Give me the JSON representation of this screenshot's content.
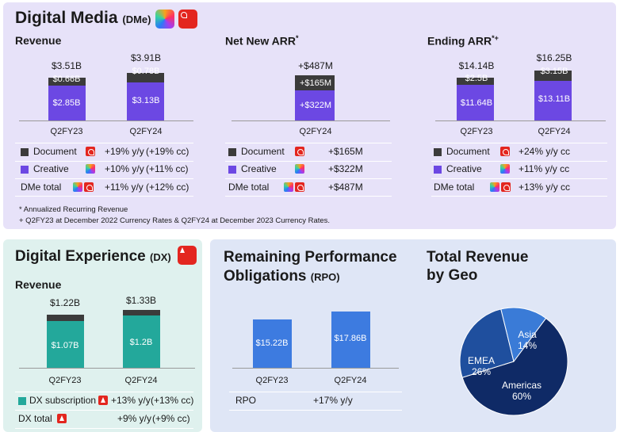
{
  "dme": {
    "title": "Digital Media",
    "title_paren": "(DMe)",
    "revenue": {
      "heading": "Revenue",
      "bars": [
        {
          "total": "$3.51B",
          "top_label": "$0.66B",
          "bottom_label": "$2.85B",
          "tick": "Q2FY23"
        },
        {
          "total": "$3.91B",
          "top_label": "$0.78B",
          "bottom_label": "$3.13B",
          "tick": "Q2FY24"
        }
      ],
      "rows": [
        {
          "label": "Document",
          "growth": "+19% y/y",
          "cc": "(+19% cc)"
        },
        {
          "label": "Creative",
          "growth": "+10% y/y",
          "cc": "(+11% cc)"
        },
        {
          "label": "DMe total",
          "growth": "+11% y/y",
          "cc": "(+12% cc)"
        }
      ]
    },
    "netnew": {
      "heading": "Net New ARR",
      "heading_sup": "*",
      "bar": {
        "total": "+$487M",
        "top_label": "+$165M",
        "bottom_label": "+$322M",
        "tick": "Q2FY24"
      },
      "rows": [
        {
          "label": "Document",
          "value": "+$165M"
        },
        {
          "label": "Creative",
          "value": "+$322M"
        },
        {
          "label": "DMe total",
          "value": "+$487M"
        }
      ]
    },
    "ending": {
      "heading": "Ending ARR",
      "heading_sup": "*+",
      "bars": [
        {
          "total": "$14.14B",
          "top_label": "$2.5B",
          "bottom_label": "$11.64B",
          "tick": "Q2FY23"
        },
        {
          "total": "$16.25B",
          "top_label": "$3.15B",
          "bottom_label": "$13.11B",
          "tick": "Q2FY24"
        }
      ],
      "rows": [
        {
          "label": "Document",
          "value": "+24% y/y cc"
        },
        {
          "label": "Creative",
          "value": "+11% y/y cc"
        },
        {
          "label": "DMe total",
          "value": "+13% y/y cc"
        }
      ]
    },
    "footnote1": "* Annualized Recurring Revenue",
    "footnote2": "+ Q2FY23 at December 2022 Currency Rates & Q2FY24 at December 2023 Currency Rates."
  },
  "dx": {
    "title": "Digital Experience",
    "title_paren": "(DX)",
    "heading": "Revenue",
    "bars": [
      {
        "total": "$1.22B",
        "bottom_label": "$1.07B",
        "tick": "Q2FY23"
      },
      {
        "total": "$1.33B",
        "bottom_label": "$1.2B",
        "tick": "Q2FY24"
      }
    ],
    "rows": [
      {
        "label": "DX subscription",
        "growth": "+13% y/y",
        "cc": "(+13% cc)"
      },
      {
        "label": "DX total",
        "growth": "+9% y/y",
        "cc": "(+9% cc)"
      }
    ]
  },
  "rpo": {
    "title_line1": "Remaining Performance",
    "title_line2": "Obligations",
    "title_paren": "(RPO)",
    "bars": [
      {
        "label": "$15.22B",
        "tick": "Q2FY23"
      },
      {
        "label": "$17.86B",
        "tick": "Q2FY24"
      }
    ],
    "row_label": "RPO",
    "row_value": "+17% y/y"
  },
  "geo": {
    "title_line1": "Total Revenue",
    "title_line2": "by Geo",
    "slices": [
      {
        "name": "Americas",
        "pct": "60%"
      },
      {
        "name": "EMEA",
        "pct": "26%"
      },
      {
        "name": "Asia",
        "pct": "14%"
      }
    ]
  },
  "colors": {
    "document": "#3b3b3b",
    "creative": "#6c48e3",
    "dx": "#23a89b",
    "rpo": "#3d7be0",
    "americas": "#0f2a66",
    "emea": "#1f4f9e",
    "asia": "#3a7bd7"
  },
  "chart_data": [
    {
      "type": "bar",
      "title": "Revenue",
      "categories": [
        "Q2FY23",
        "Q2FY24"
      ],
      "series": [
        {
          "name": "Document",
          "values": [
            0.66,
            0.78
          ]
        },
        {
          "name": "Creative",
          "values": [
            2.85,
            3.13
          ]
        }
      ],
      "totals": [
        3.51,
        3.91
      ]
    },
    {
      "type": "bar",
      "title": "Net New ARR",
      "categories": [
        "Q2FY24"
      ],
      "series": [
        {
          "name": "Document",
          "values": [
            165
          ]
        },
        {
          "name": "Creative",
          "values": [
            322
          ]
        }
      ],
      "totals": [
        487
      ]
    },
    {
      "type": "bar",
      "title": "Ending ARR",
      "categories": [
        "Q2FY23",
        "Q2FY24"
      ],
      "series": [
        {
          "name": "Document",
          "values": [
            2.5,
            3.15
          ]
        },
        {
          "name": "Creative",
          "values": [
            11.64,
            13.11
          ]
        }
      ],
      "totals": [
        14.14,
        16.25
      ]
    },
    {
      "type": "bar",
      "title": "Revenue",
      "categories": [
        "Q2FY23",
        "Q2FY24"
      ],
      "series": [
        {
          "name": "DX subscription",
          "values": [
            1.07,
            1.2
          ]
        }
      ],
      "totals": [
        1.22,
        1.33
      ]
    },
    {
      "type": "bar",
      "title": "Remaining Performance Obligations (RPO)",
      "categories": [
        "Q2FY23",
        "Q2FY24"
      ],
      "series": [
        {
          "name": "RPO",
          "values": [
            15.22,
            17.86
          ]
        }
      ]
    },
    {
      "type": "pie",
      "title": "Total Revenue by Geo",
      "categories": [
        "Americas",
        "EMEA",
        "Asia"
      ],
      "values": [
        60,
        26,
        14
      ]
    }
  ]
}
